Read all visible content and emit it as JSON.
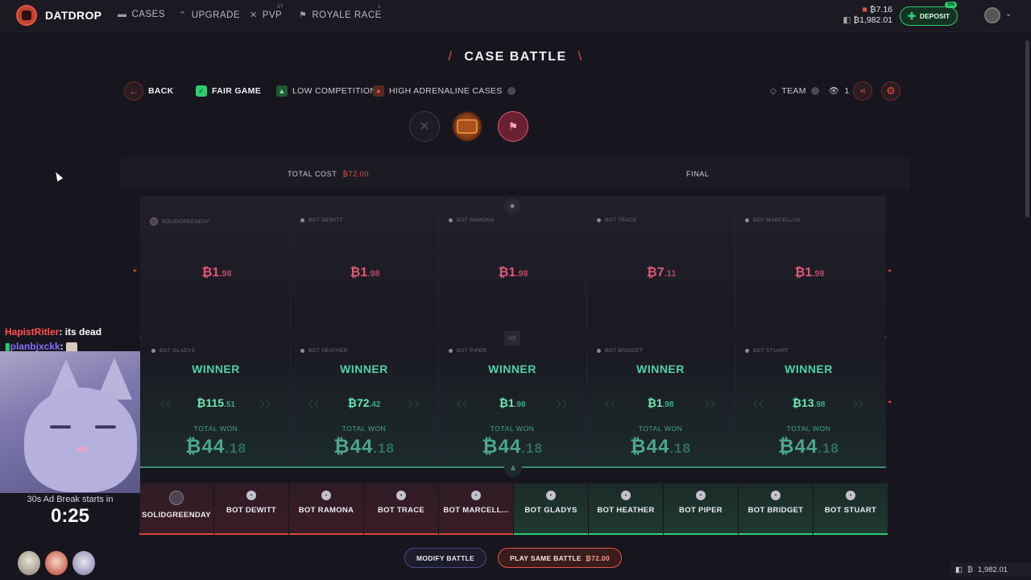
{
  "brand": {
    "name": "DATDROP"
  },
  "nav": [
    {
      "label": "CASES",
      "icon": "case-icon"
    },
    {
      "label": "UPGRADE",
      "icon": "upgrade-icon"
    },
    {
      "label": "PVP",
      "icon": "swords-icon",
      "sup": "37"
    },
    {
      "label": "ROYALE RACE",
      "icon": "flag-icon",
      "sup": "1"
    }
  ],
  "account": {
    "balance_main": "7.16",
    "balance_secondary": "1,982.01",
    "deposit_label": "DEPOSIT",
    "deposit_badge": "5%"
  },
  "page": {
    "title": "CASE BATTLE"
  },
  "toolbar": {
    "back": "BACK",
    "fair": "FAIR GAME",
    "low_comp": "LOW COMPETITION",
    "high_adrenaline": "HIGH ADRENALINE CASES",
    "team": "TEAM",
    "viewers": "1"
  },
  "summary": {
    "total_cost_label": "TOTAL COST",
    "total_cost_value": "72.00",
    "final_label": "FINAL"
  },
  "top_players": [
    {
      "name": "SOLIDGREENDAY",
      "whole": "1",
      "cents": ".98"
    },
    {
      "name": "BOT DEWITT",
      "whole": "1",
      "cents": ".98"
    },
    {
      "name": "BOT RAMONA",
      "whole": "1",
      "cents": ".98"
    },
    {
      "name": "BOT TRACE",
      "whole": "7",
      "cents": ".11"
    },
    {
      "name": "BOT MARCELLUS",
      "whole": "1",
      "cents": ".98"
    }
  ],
  "bottom_players": [
    {
      "name": "BOT GLADYS",
      "status": "WINNER",
      "whole": "115",
      "cents": ".51",
      "total_label": "TOTAL WON",
      "total_whole": "44",
      "total_cents": ".18"
    },
    {
      "name": "BOT HEATHER",
      "status": "WINNER",
      "whole": "72",
      "cents": ".42",
      "total_label": "TOTAL WON",
      "total_whole": "44",
      "total_cents": ".18"
    },
    {
      "name": "BOT PIPER",
      "status": "WINNER",
      "whole": "1",
      "cents": ".98",
      "total_label": "TOTAL WON",
      "total_whole": "44",
      "total_cents": ".18"
    },
    {
      "name": "BOT BRIDGET",
      "status": "WINNER",
      "whole": "1",
      "cents": ".98",
      "total_label": "TOTAL WON",
      "total_whole": "44",
      "total_cents": ".18"
    },
    {
      "name": "BOT STUART",
      "status": "WINNER",
      "whole": "13",
      "cents": ".98",
      "total_label": "TOTAL WON",
      "total_whole": "44",
      "total_cents": ".18"
    }
  ],
  "tabs": [
    {
      "name": "SOLIDGREENDAY",
      "team": "red"
    },
    {
      "name": "BOT DEWITT",
      "team": "red"
    },
    {
      "name": "BOT RAMONA",
      "team": "red"
    },
    {
      "name": "BOT TRACE",
      "team": "red"
    },
    {
      "name": "BOT MARCELL...",
      "team": "red"
    },
    {
      "name": "BOT GLADYS",
      "team": "green"
    },
    {
      "name": "BOT HEATHER",
      "team": "green"
    },
    {
      "name": "BOT PIPER",
      "team": "green"
    },
    {
      "name": "BOT BRIDGET",
      "team": "green"
    },
    {
      "name": "BOT STUART",
      "team": "green"
    }
  ],
  "actions": {
    "modify": "MODIFY BATTLE",
    "play_same": "PLAY SAME BATTLE",
    "play_price": "72.00"
  },
  "footer": {
    "balance": "1,982.01"
  },
  "stream": {
    "chat": [
      {
        "user": "HapistRitler",
        "message": "its dead"
      },
      {
        "user": "planbjxckk",
        "message": ""
      }
    ],
    "ad_text": "30s Ad Break starts in",
    "ad_timer": "0:25"
  },
  "colors": {
    "accent_red": "#e2553f",
    "accent_green": "#2ecc71",
    "value_pink": "#e05876",
    "value_green": "#6ee7b7"
  }
}
